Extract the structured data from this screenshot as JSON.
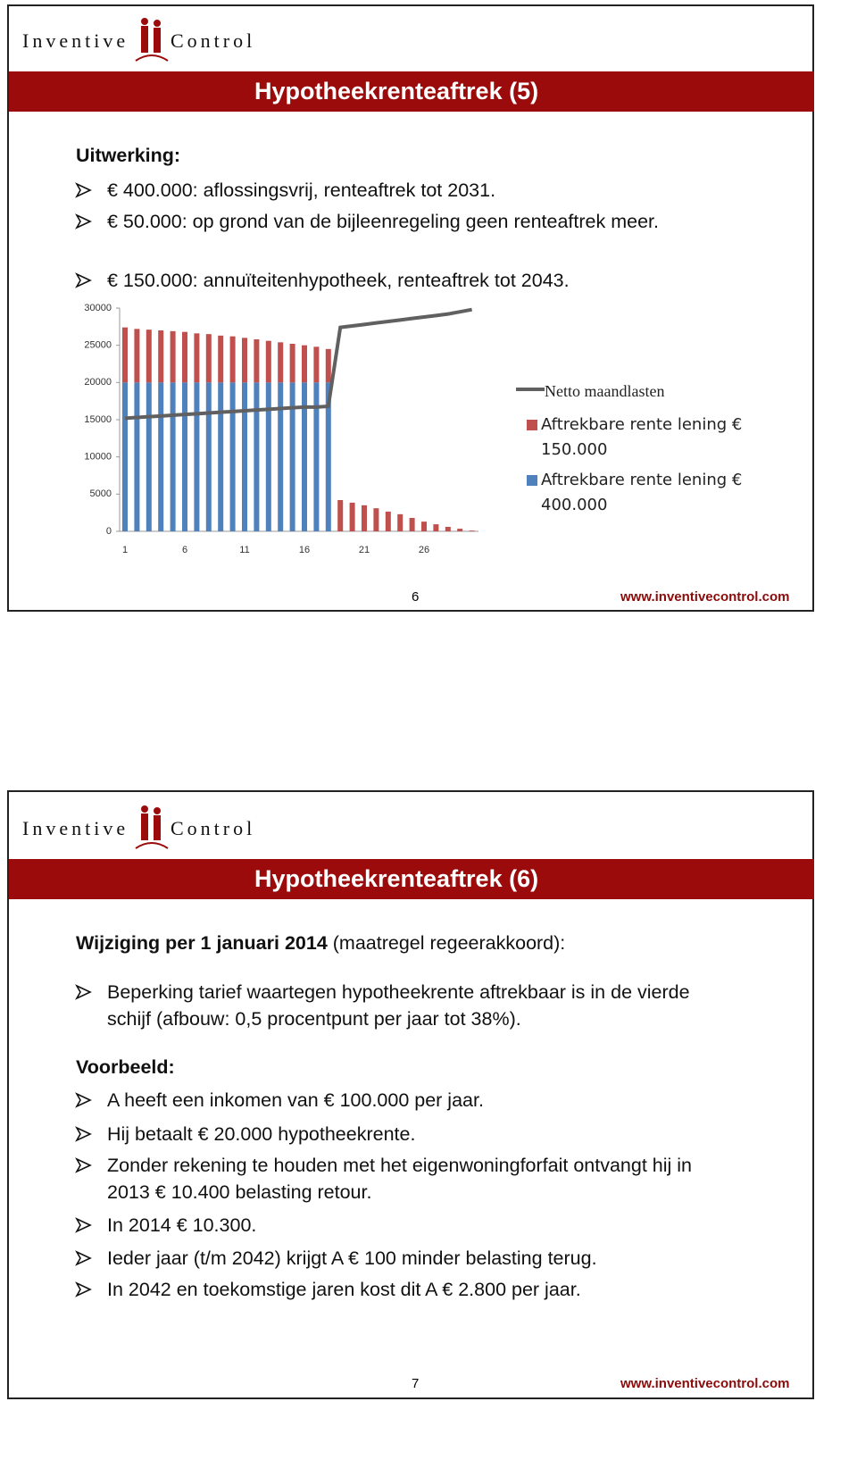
{
  "slides": [
    {
      "logo_left": "Inventive",
      "logo_right": "Control",
      "title": "Hypotheekrenteaftrek (5)",
      "heading": "Uitwerking:",
      "bullets": [
        "€ 400.000: aflossingsvrij, renteaftrek tot 2031.",
        "€ 50.000: op grond van de bijleenregeling geen renteaftrek meer.",
        "€ 150.000: annuïteitenhypotheek, renteaftrek tot 2043."
      ],
      "page_number": "6",
      "url": "www.inventivecontrol.com"
    },
    {
      "logo_left": "Inventive",
      "logo_right": "Control",
      "title": "Hypotheekrenteaftrek (6)",
      "heading_bold": "Wijziging per 1 januari 2014",
      "heading_rest": "(maatregel regeerakkoord):",
      "bullets": [
        "Beperking tarief waartegen hypotheekrente aftrekbaar is in de vierde schijf (afbouw: 0,5 procentpunt per jaar tot 38%)."
      ],
      "subheading": "Voorbeeld:",
      "bullets2": [
        "A heeft een inkomen van € 100.000 per jaar.",
        "Hij betaalt € 20.000 hypotheekrente.",
        "Zonder rekening te houden met het eigenwoningforfait ontvangt hij in 2013 € 10.400 belasting retour.",
        "In 2014 € 10.300.",
        "Ieder jaar (t/m 2042) krijgt A € 100 minder belasting terug.",
        "In 2042 en toekomstige jaren kost dit A € 2.800 per jaar."
      ],
      "page_number": "7",
      "url": "www.inventivecontrol.com"
    }
  ],
  "chart_data": {
    "type": "stacked_bar_line",
    "categories": [
      "1",
      null,
      null,
      null,
      null,
      "6",
      null,
      null,
      null,
      null,
      "11",
      null,
      null,
      null,
      null,
      "16",
      null,
      null,
      null,
      null,
      "21",
      null,
      null,
      null,
      null,
      "26",
      null,
      null,
      null,
      null
    ],
    "series": [
      {
        "name": "Aftrekbare rente lening € 400.000",
        "color": "#4f81bd",
        "kind": "bar",
        "values": [
          20000,
          20000,
          20000,
          20000,
          20000,
          20000,
          20000,
          20000,
          20000,
          20000,
          20000,
          20000,
          20000,
          20000,
          20000,
          20000,
          20000,
          20000,
          null,
          null,
          null,
          null,
          null,
          null,
          null,
          null,
          null,
          null,
          null,
          null
        ]
      },
      {
        "name": "Aftrekbare rente lening € 150.000",
        "color": "#c0504d",
        "kind": "bar",
        "values": [
          7400,
          7200,
          7100,
          7000,
          6900,
          6800,
          6600,
          6500,
          6300,
          6200,
          6000,
          5800,
          5600,
          5400,
          5200,
          5000,
          4800,
          4500,
          4200,
          3850,
          3500,
          3100,
          2650,
          2300,
          1800,
          1300,
          950,
          600,
          350,
          100
        ]
      },
      {
        "name": "Netto maandlasten",
        "color": "#606060",
        "kind": "line",
        "values": [
          15200,
          15300,
          15400,
          15500,
          15600,
          15700,
          15800,
          15900,
          16000,
          16100,
          16200,
          16300,
          16400,
          16500,
          16600,
          16700,
          16700,
          16800,
          27400,
          27600,
          27800,
          28000,
          28200,
          28400,
          28600,
          28800,
          29000,
          29200,
          29500,
          29800
        ]
      }
    ],
    "ylim": [
      0,
      30000
    ],
    "yticks": [
      0,
      5000,
      10000,
      15000,
      20000,
      25000,
      30000
    ],
    "grid": false,
    "legend": "right"
  }
}
